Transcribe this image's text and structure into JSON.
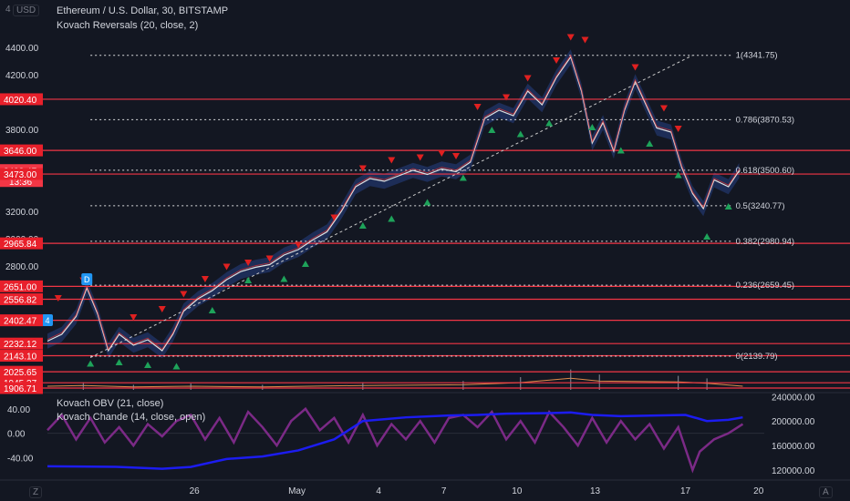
{
  "header": {
    "currency": "USD",
    "symbol_line": "Ethereum / U.S. Dollar, 30, BITSTAMP",
    "indicator_1": "Kovach Reversals (20, close, 2)",
    "indicator_2": "Kovach OBV (21, close)",
    "indicator_3": "Kovach Chande (14, close, open)"
  },
  "corners": {
    "top_left": "4",
    "bottom_left": "Z",
    "bottom_right": "A"
  },
  "chart_data": {
    "type": "line",
    "title": "Ethereum / U.S. Dollar, 30, BITSTAMP",
    "price_axis": {
      "ylim": [
        1880,
        4520
      ],
      "ticks": [
        {
          "v": 4400,
          "label": "4400.00"
        },
        {
          "v": 4200,
          "label": "4200.00"
        },
        {
          "v": 3800,
          "label": "3800.00"
        },
        {
          "v": 3200,
          "label": "3200.00"
        },
        {
          "v": 3000,
          "label": "3000.00"
        },
        {
          "v": 2800,
          "label": "2800.00"
        }
      ],
      "tags": [
        {
          "v": 4020.4,
          "label": "4020.40"
        },
        {
          "v": 3646.0,
          "label": "3646.00"
        },
        {
          "v": 3498.47,
          "label": "3498.47",
          "sub": "13:36",
          "current": true
        },
        {
          "v": 3473.0,
          "label": "3473.00"
        },
        {
          "v": 2965.84,
          "label": "2965.84"
        },
        {
          "v": 2651.0,
          "label": "2651.00"
        },
        {
          "v": 2556.82,
          "label": "2556.82"
        },
        {
          "v": 2402.47,
          "label": "2402.47"
        },
        {
          "v": 2232.12,
          "label": "2232.12"
        },
        {
          "v": 2143.1,
          "label": "2143.10"
        },
        {
          "v": 2025.65,
          "label": "2025.65"
        },
        {
          "v": 1945.37,
          "label": "1945.37"
        },
        {
          "v": 1906.71,
          "label": "1906.71"
        }
      ]
    },
    "x_axis": {
      "ticks": [
        {
          "label": "26",
          "t": 0.205
        },
        {
          "label": "May",
          "t": 0.348
        },
        {
          "label": "4",
          "t": 0.462
        },
        {
          "label": "7",
          "t": 0.553
        },
        {
          "label": "10",
          "t": 0.655
        },
        {
          "label": "13",
          "t": 0.764
        },
        {
          "label": "17",
          "t": 0.89
        },
        {
          "label": "20",
          "t": 0.992
        }
      ]
    },
    "horizontal_levels": [
      4020.4,
      3646.0,
      3473.0,
      2965.84,
      2651.0,
      2556.82,
      2402.47,
      2232.12,
      2143.1,
      2025.65,
      1945.37,
      1906.71
    ],
    "fibonacci": [
      {
        "label": "1(4341.75)",
        "v": 4341.75
      },
      {
        "label": "0.786(3870.53)",
        "v": 3870.53
      },
      {
        "label": "0.618(3500.60)",
        "v": 3500.6
      },
      {
        "label": "0.5(3240.77)",
        "v": 3240.77
      },
      {
        "label": "0.382(2980.94)",
        "v": 2980.94
      },
      {
        "label": "0.236(2659.45)",
        "v": 2659.45
      },
      {
        "label": "0(2139.79)",
        "v": 2139.79
      }
    ],
    "trendline": {
      "from": {
        "t": 0.06,
        "v": 2130
      },
      "to": {
        "t": 0.9,
        "v": 4341.75
      }
    },
    "price_series": [
      {
        "t": 0.0,
        "v": 2250
      },
      {
        "t": 0.02,
        "v": 2300
      },
      {
        "t": 0.04,
        "v": 2430
      },
      {
        "t": 0.055,
        "v": 2640
      },
      {
        "t": 0.07,
        "v": 2450
      },
      {
        "t": 0.085,
        "v": 2180
      },
      {
        "t": 0.1,
        "v": 2300
      },
      {
        "t": 0.12,
        "v": 2220
      },
      {
        "t": 0.14,
        "v": 2260
      },
      {
        "t": 0.16,
        "v": 2180
      },
      {
        "t": 0.175,
        "v": 2300
      },
      {
        "t": 0.19,
        "v": 2470
      },
      {
        "t": 0.21,
        "v": 2560
      },
      {
        "t": 0.23,
        "v": 2620
      },
      {
        "t": 0.25,
        "v": 2700
      },
      {
        "t": 0.27,
        "v": 2760
      },
      {
        "t": 0.29,
        "v": 2790
      },
      {
        "t": 0.31,
        "v": 2810
      },
      {
        "t": 0.33,
        "v": 2880
      },
      {
        "t": 0.35,
        "v": 2920
      },
      {
        "t": 0.37,
        "v": 2990
      },
      {
        "t": 0.39,
        "v": 3050
      },
      {
        "t": 0.41,
        "v": 3200
      },
      {
        "t": 0.43,
        "v": 3380
      },
      {
        "t": 0.45,
        "v": 3440
      },
      {
        "t": 0.47,
        "v": 3420
      },
      {
        "t": 0.49,
        "v": 3460
      },
      {
        "t": 0.51,
        "v": 3500
      },
      {
        "t": 0.53,
        "v": 3470
      },
      {
        "t": 0.55,
        "v": 3510
      },
      {
        "t": 0.57,
        "v": 3490
      },
      {
        "t": 0.59,
        "v": 3560
      },
      {
        "t": 0.61,
        "v": 3880
      },
      {
        "t": 0.63,
        "v": 3940
      },
      {
        "t": 0.65,
        "v": 3900
      },
      {
        "t": 0.67,
        "v": 4080
      },
      {
        "t": 0.69,
        "v": 3980
      },
      {
        "t": 0.71,
        "v": 4180
      },
      {
        "t": 0.73,
        "v": 4330
      },
      {
        "t": 0.745,
        "v": 4080
      },
      {
        "t": 0.76,
        "v": 3700
      },
      {
        "t": 0.775,
        "v": 3850
      },
      {
        "t": 0.79,
        "v": 3640
      },
      {
        "t": 0.805,
        "v": 3940
      },
      {
        "t": 0.82,
        "v": 4150
      },
      {
        "t": 0.835,
        "v": 3980
      },
      {
        "t": 0.85,
        "v": 3810
      },
      {
        "t": 0.87,
        "v": 3780
      },
      {
        "t": 0.885,
        "v": 3520
      },
      {
        "t": 0.9,
        "v": 3330
      },
      {
        "t": 0.915,
        "v": 3220
      },
      {
        "t": 0.93,
        "v": 3430
      },
      {
        "t": 0.95,
        "v": 3380
      },
      {
        "t": 0.965,
        "v": 3498
      }
    ],
    "sell_signals": [
      {
        "t": 0.015,
        "v": 2560
      },
      {
        "t": 0.05,
        "v": 2690
      },
      {
        "t": 0.12,
        "v": 2420
      },
      {
        "t": 0.16,
        "v": 2480
      },
      {
        "t": 0.19,
        "v": 2590
      },
      {
        "t": 0.22,
        "v": 2700
      },
      {
        "t": 0.25,
        "v": 2790
      },
      {
        "t": 0.28,
        "v": 2820
      },
      {
        "t": 0.31,
        "v": 2850
      },
      {
        "t": 0.35,
        "v": 2950
      },
      {
        "t": 0.4,
        "v": 3150
      },
      {
        "t": 0.44,
        "v": 3510
      },
      {
        "t": 0.48,
        "v": 3570
      },
      {
        "t": 0.52,
        "v": 3590
      },
      {
        "t": 0.55,
        "v": 3620
      },
      {
        "t": 0.57,
        "v": 3600
      },
      {
        "t": 0.6,
        "v": 3960
      },
      {
        "t": 0.64,
        "v": 4030
      },
      {
        "t": 0.67,
        "v": 4170
      },
      {
        "t": 0.71,
        "v": 4300
      },
      {
        "t": 0.73,
        "v": 4470
      },
      {
        "t": 0.75,
        "v": 4450
      },
      {
        "t": 0.82,
        "v": 4250
      },
      {
        "t": 0.86,
        "v": 3950
      },
      {
        "t": 0.88,
        "v": 3800
      }
    ],
    "buy_signals": [
      {
        "t": 0.06,
        "v": 2090
      },
      {
        "t": 0.1,
        "v": 2100
      },
      {
        "t": 0.14,
        "v": 2080
      },
      {
        "t": 0.18,
        "v": 2070
      },
      {
        "t": 0.23,
        "v": 2480
      },
      {
        "t": 0.28,
        "v": 2700
      },
      {
        "t": 0.33,
        "v": 2710
      },
      {
        "t": 0.36,
        "v": 2820
      },
      {
        "t": 0.44,
        "v": 3100
      },
      {
        "t": 0.48,
        "v": 3150
      },
      {
        "t": 0.53,
        "v": 3270
      },
      {
        "t": 0.58,
        "v": 3450
      },
      {
        "t": 0.62,
        "v": 3800
      },
      {
        "t": 0.66,
        "v": 3770
      },
      {
        "t": 0.7,
        "v": 3850
      },
      {
        "t": 0.76,
        "v": 3820
      },
      {
        "t": 0.8,
        "v": 3650
      },
      {
        "t": 0.84,
        "v": 3700
      },
      {
        "t": 0.88,
        "v": 3470
      },
      {
        "t": 0.92,
        "v": 3020
      },
      {
        "t": 0.95,
        "v": 3240
      }
    ],
    "markers": [
      {
        "label": "D",
        "t": 0.055,
        "v": 2700
      },
      {
        "label": "4",
        "t": 0.0,
        "v": 2400
      }
    ],
    "volume": [
      {
        "t": 0.05,
        "h": 0.3
      },
      {
        "t": 0.12,
        "h": 0.2
      },
      {
        "t": 0.2,
        "h": 0.25
      },
      {
        "t": 0.3,
        "h": 0.2
      },
      {
        "t": 0.44,
        "h": 0.3
      },
      {
        "t": 0.58,
        "h": 0.35
      },
      {
        "t": 0.66,
        "h": 0.5
      },
      {
        "t": 0.73,
        "h": 0.8
      },
      {
        "t": 0.77,
        "h": 0.6
      },
      {
        "t": 0.88,
        "h": 0.55
      },
      {
        "t": 0.92,
        "h": 0.45
      }
    ],
    "oscillator_axis": {
      "left_ylim": [
        -75,
        65
      ],
      "left_ticks": [
        {
          "v": 40,
          "label": "40.00"
        },
        {
          "v": 0,
          "label": "0.00"
        },
        {
          "v": -40,
          "label": "-40.00"
        }
      ],
      "right_ylim": [
        105000,
        245000
      ],
      "right_ticks": [
        {
          "v": 240000,
          "label": "240000.00"
        },
        {
          "v": 200000,
          "label": "200000.00"
        },
        {
          "v": 160000,
          "label": "160000.00"
        },
        {
          "v": 120000,
          "label": "120000.00"
        }
      ]
    },
    "obv_series": [
      {
        "t": 0.0,
        "v": 126000
      },
      {
        "t": 0.1,
        "v": 125000
      },
      {
        "t": 0.16,
        "v": 122000
      },
      {
        "t": 0.2,
        "v": 125000
      },
      {
        "t": 0.25,
        "v": 138000
      },
      {
        "t": 0.3,
        "v": 142000
      },
      {
        "t": 0.35,
        "v": 152000
      },
      {
        "t": 0.4,
        "v": 170000
      },
      {
        "t": 0.44,
        "v": 200000
      },
      {
        "t": 0.5,
        "v": 206000
      },
      {
        "t": 0.56,
        "v": 209000
      },
      {
        "t": 0.6,
        "v": 210000
      },
      {
        "t": 0.64,
        "v": 212000
      },
      {
        "t": 0.7,
        "v": 213000
      },
      {
        "t": 0.73,
        "v": 214000
      },
      {
        "t": 0.76,
        "v": 210000
      },
      {
        "t": 0.8,
        "v": 208000
      },
      {
        "t": 0.85,
        "v": 209000
      },
      {
        "t": 0.89,
        "v": 210000
      },
      {
        "t": 0.92,
        "v": 200000
      },
      {
        "t": 0.95,
        "v": 202000
      },
      {
        "t": 0.97,
        "v": 206000
      }
    ],
    "chande_series": [
      {
        "t": 0.0,
        "v": 5
      },
      {
        "t": 0.02,
        "v": 30
      },
      {
        "t": 0.04,
        "v": -10
      },
      {
        "t": 0.06,
        "v": 25
      },
      {
        "t": 0.08,
        "v": -15
      },
      {
        "t": 0.1,
        "v": 10
      },
      {
        "t": 0.12,
        "v": -20
      },
      {
        "t": 0.14,
        "v": 15
      },
      {
        "t": 0.16,
        "v": -5
      },
      {
        "t": 0.18,
        "v": 20
      },
      {
        "t": 0.2,
        "v": 30
      },
      {
        "t": 0.22,
        "v": -10
      },
      {
        "t": 0.24,
        "v": 25
      },
      {
        "t": 0.26,
        "v": -15
      },
      {
        "t": 0.28,
        "v": 35
      },
      {
        "t": 0.3,
        "v": 10
      },
      {
        "t": 0.32,
        "v": -20
      },
      {
        "t": 0.34,
        "v": 20
      },
      {
        "t": 0.36,
        "v": 40
      },
      {
        "t": 0.38,
        "v": 5
      },
      {
        "t": 0.4,
        "v": 25
      },
      {
        "t": 0.42,
        "v": -15
      },
      {
        "t": 0.44,
        "v": 30
      },
      {
        "t": 0.46,
        "v": -20
      },
      {
        "t": 0.48,
        "v": 15
      },
      {
        "t": 0.5,
        "v": -10
      },
      {
        "t": 0.52,
        "v": 20
      },
      {
        "t": 0.54,
        "v": -15
      },
      {
        "t": 0.56,
        "v": 25
      },
      {
        "t": 0.58,
        "v": 30
      },
      {
        "t": 0.6,
        "v": 10
      },
      {
        "t": 0.62,
        "v": 35
      },
      {
        "t": 0.64,
        "v": -10
      },
      {
        "t": 0.66,
        "v": 20
      },
      {
        "t": 0.68,
        "v": -15
      },
      {
        "t": 0.7,
        "v": 35
      },
      {
        "t": 0.72,
        "v": 10
      },
      {
        "t": 0.74,
        "v": -20
      },
      {
        "t": 0.76,
        "v": 25
      },
      {
        "t": 0.78,
        "v": -15
      },
      {
        "t": 0.8,
        "v": 20
      },
      {
        "t": 0.82,
        "v": -10
      },
      {
        "t": 0.84,
        "v": 15
      },
      {
        "t": 0.86,
        "v": -25
      },
      {
        "t": 0.88,
        "v": 10
      },
      {
        "t": 0.9,
        "v": -60
      },
      {
        "t": 0.91,
        "v": -30
      },
      {
        "t": 0.93,
        "v": -10
      },
      {
        "t": 0.95,
        "v": 0
      },
      {
        "t": 0.97,
        "v": 15
      }
    ],
    "colors": {
      "background": "#131722",
      "price_line": "#e0e0e0",
      "band": "#2a4a9a",
      "level_line": "#f23645",
      "fib_line": "#ffffff",
      "sell_marker": "#e02020",
      "buy_marker": "#1ea35a",
      "obv_line": "#1c1cf0",
      "chande_line": "#7b2a86",
      "volume": "#e08a4a",
      "marker_badge": "#2196f3"
    }
  }
}
